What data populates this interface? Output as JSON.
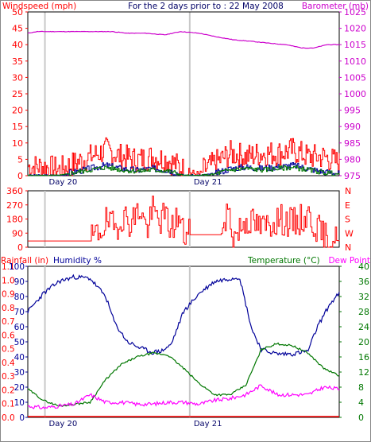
{
  "header": {
    "title": "For the 2 days prior to : 22 May 2008"
  },
  "colors": {
    "red": "#ff0000",
    "magenta": "#cc00cc",
    "blue": "#000099",
    "green": "#007700",
    "pink": "#ff00ff",
    "axis": "#000000",
    "day_line": "#c8c8c8",
    "text_dark": "#000066"
  },
  "chart_data": [
    {
      "type": "line",
      "id": "wind-barometer",
      "left_label": "Windspeed (mph)",
      "right_label": "Barometer (mb)",
      "left_ylim": [
        0,
        50
      ],
      "left_ticks": [
        "0",
        "5",
        "10",
        "15",
        "20",
        "25",
        "30",
        "35",
        "40",
        "45",
        "50"
      ],
      "right_ylim": [
        975,
        1025
      ],
      "right_ticks": [
        "975",
        "980",
        "985",
        "990",
        "995",
        "1000",
        "1005",
        "1010",
        "1015",
        "1020",
        "1025"
      ],
      "day_labels": [
        "Day 20",
        "Day 21"
      ],
      "series": [
        {
          "role": "barometer",
          "axis": "right",
          "x": [
            0,
            0.03,
            0.08,
            0.15,
            0.2,
            0.27,
            0.32,
            0.38,
            0.44,
            0.49,
            0.55,
            0.6,
            0.66,
            0.72,
            0.77,
            0.83,
            0.88,
            0.92,
            0.96,
            1
          ],
          "y": [
            1018.5,
            1019,
            1019,
            1019,
            1019,
            1019,
            1018.5,
            1018.5,
            1018,
            1019,
            1018.5,
            1017.5,
            1016.5,
            1016,
            1015.5,
            1015,
            1014,
            1014,
            1015,
            1015
          ]
        },
        {
          "role": "gust",
          "axis": "left",
          "style": "spiky",
          "x": [
            0,
            0.05,
            0.1,
            0.15,
            0.2,
            0.25,
            0.3,
            0.35,
            0.4,
            0.45,
            0.5,
            0.55,
            0.6,
            0.65,
            0.7,
            0.75,
            0.8,
            0.85,
            0.9,
            0.95,
            1
          ],
          "y": [
            2,
            2,
            1,
            3,
            5,
            7,
            5,
            4,
            5,
            4,
            1,
            0,
            3,
            6,
            5,
            6,
            6,
            7,
            5,
            5,
            3
          ]
        },
        {
          "role": "average",
          "axis": "left",
          "style": "spiky",
          "x": [
            0,
            0.05,
            0.1,
            0.15,
            0.2,
            0.25,
            0.3,
            0.35,
            0.4,
            0.45,
            0.5,
            0.55,
            0.6,
            0.65,
            0.7,
            0.75,
            0.8,
            0.85,
            0.9,
            0.95,
            1
          ],
          "y": [
            0,
            0,
            0,
            1,
            2,
            3,
            2,
            1.5,
            2,
            1.5,
            0,
            0,
            0.5,
            2,
            2.5,
            2,
            2.5,
            3,
            2,
            1,
            0.5
          ]
        }
      ]
    },
    {
      "type": "line",
      "id": "wind-direction",
      "left_ylim": [
        0,
        360
      ],
      "left_ticks": [
        "0",
        "90",
        "180",
        "270",
        "360"
      ],
      "right_labels": [
        "N",
        "W",
        "S",
        "E",
        "N"
      ],
      "series": [
        {
          "role": "direction",
          "axis": "left",
          "x": [
            0,
            0.2,
            0.22,
            0.25,
            0.28,
            0.3,
            0.33,
            0.36,
            0.38,
            0.4,
            0.42,
            0.44,
            0.46,
            0.48,
            0.5,
            0.52,
            0.62,
            0.64,
            0.66,
            0.7,
            0.75,
            0.8,
            0.85,
            0.9,
            0.95,
            1
          ],
          "y": [
            40,
            40,
            80,
            160,
            120,
            200,
            160,
            250,
            110,
            230,
            170,
            200,
            110,
            200,
            80,
            80,
            80,
            250,
            60,
            180,
            120,
            180,
            150,
            200,
            60,
            40
          ]
        }
      ]
    },
    {
      "type": "line",
      "id": "rain-humidity-temp",
      "left_outer_label": "Rainfall (in)",
      "left_inner_label": "Humidity %",
      "right_label": "Temperature (°C)",
      "right_outer_label": "Dew Point",
      "rain_ylim": [
        0,
        1.2
      ],
      "rain_ticks": [
        "0.0",
        "0.1",
        "0.2",
        "0.3",
        "0.4",
        "0.5",
        "0.6",
        "0.7",
        "0.8",
        "0.9",
        "1.0",
        "1.1"
      ],
      "humidity_ylim": [
        0,
        100
      ],
      "humidity_ticks": [
        "0",
        "10",
        "20",
        "30",
        "40",
        "50",
        "60",
        "70",
        "80",
        "90",
        "100"
      ],
      "temp_ylim": [
        0,
        40
      ],
      "temp_ticks": [
        "0",
        "4",
        "8",
        "12",
        "16",
        "20",
        "24",
        "28",
        "32",
        "36",
        "40"
      ],
      "day_labels": [
        "Day 20",
        "Day 21"
      ],
      "series": [
        {
          "role": "humidity",
          "axis": "humidity",
          "x": [
            0,
            0.05,
            0.1,
            0.15,
            0.2,
            0.25,
            0.28,
            0.32,
            0.36,
            0.4,
            0.43,
            0.46,
            0.5,
            0.55,
            0.6,
            0.65,
            0.68,
            0.7,
            0.72,
            0.75,
            0.8,
            0.85,
            0.9,
            0.93,
            0.97,
            1
          ],
          "y": [
            70,
            82,
            90,
            93,
            92,
            80,
            62,
            50,
            46,
            43,
            44,
            48,
            70,
            82,
            90,
            92,
            93,
            75,
            58,
            45,
            42,
            42,
            44,
            60,
            75,
            82
          ]
        },
        {
          "role": "temperature",
          "axis": "temperature",
          "x": [
            0,
            0.05,
            0.1,
            0.15,
            0.2,
            0.25,
            0.3,
            0.35,
            0.4,
            0.45,
            0.5,
            0.55,
            0.6,
            0.65,
            0.7,
            0.75,
            0.8,
            0.85,
            0.9,
            0.95,
            1
          ],
          "y": [
            7.5,
            4.5,
            3,
            3.5,
            4,
            10,
            14,
            16,
            17,
            16.5,
            13,
            9,
            6,
            6,
            8.5,
            18,
            19.5,
            19,
            17,
            13,
            11
          ]
        },
        {
          "role": "dew-point",
          "axis": "temperature",
          "x": [
            0,
            0.05,
            0.1,
            0.15,
            0.2,
            0.25,
            0.3,
            0.35,
            0.4,
            0.45,
            0.5,
            0.55,
            0.6,
            0.65,
            0.7,
            0.75,
            0.8,
            0.85,
            0.9,
            0.95,
            1
          ],
          "y": [
            3,
            2.5,
            3,
            3.5,
            6,
            4,
            4,
            3.5,
            3.5,
            4,
            4,
            3.5,
            4.5,
            5,
            6,
            8.5,
            6,
            6,
            6,
            8,
            7.5
          ]
        },
        {
          "role": "rainfall",
          "axis": "rain",
          "x": [
            0,
            1
          ],
          "y": [
            0,
            0
          ]
        }
      ]
    }
  ]
}
